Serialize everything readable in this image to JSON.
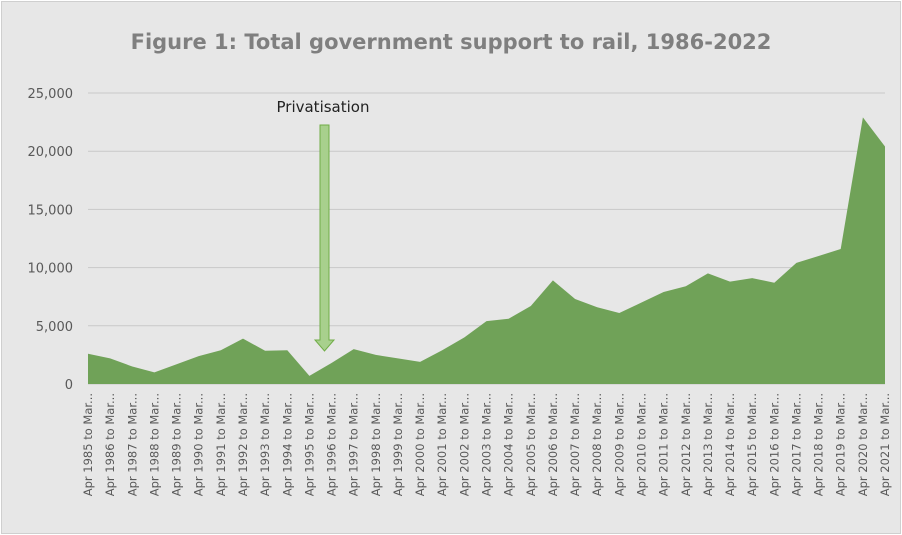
{
  "colors": {
    "area": "#70a258",
    "grid": "#c9c9c9",
    "arrow_fill": "#a8d08d",
    "arrow_stroke": "#70ad47",
    "title": "#7f7f7f"
  },
  "chart_data": {
    "type": "area",
    "title": "Figure 1: Total government support to rail, 1986-2022",
    "xlabel": "",
    "ylabel": "",
    "ylim": [
      0,
      25000
    ],
    "yticks": [
      "0",
      "5,000",
      "10,000",
      "15,000",
      "20,000",
      "25,000"
    ],
    "grid": true,
    "annotation": {
      "text": "Privatisation",
      "category": "Apr 1996 to Mar..."
    },
    "categories": [
      "Apr 1985 to Mar...",
      "Apr 1986 to Mar...",
      "Apr 1987 to Mar...",
      "Apr 1988 to Mar...",
      "Apr 1989 to Mar...",
      "Apr 1990 to Mar...",
      "Apr 1991 to Mar...",
      "Apr 1992 to Mar...",
      "Apr 1993 to Mar...",
      "Apr 1994 to Mar...",
      "Apr 1995 to Mar...",
      "Apr 1996 to Mar...",
      "Apr 1997 to Mar...",
      "Apr 1998 to Mar...",
      "Apr 1999 to Mar...",
      "Apr 2000 to Mar...",
      "Apr 2001 to Mar...",
      "Apr 2002 to Mar...",
      "Apr 2003 to Mar...",
      "Apr 2004 to Mar...",
      "Apr 2005 to Mar...",
      "Apr 2006 to Mar...",
      "Apr 2007 to Mar...",
      "Apr 2008 to Mar...",
      "Apr 2009 to Mar...",
      "Apr 2010 to Mar...",
      "Apr 2011 to Mar...",
      "Apr 2012 to Mar...",
      "Apr 2013 to Mar...",
      "Apr 2014 to Mar...",
      "Apr 2015 to Mar...",
      "Apr 2016 to Mar...",
      "Apr 2017 to Mar...",
      "Apr 2018 to Mar...",
      "Apr 2019 to Mar...",
      "Apr 2020 to Mar...",
      "Apr 2021 to Mar..."
    ],
    "values": [
      2600,
      2200,
      1500,
      1000,
      1700,
      2400,
      2900,
      3900,
      2850,
      2900,
      700,
      1800,
      3000,
      2500,
      2200,
      1900,
      2900,
      4000,
      5400,
      5600,
      6700,
      8900,
      7300,
      6600,
      6100,
      7000,
      7900,
      8400,
      9500,
      8800,
      9100,
      8700,
      10400,
      11000,
      11600,
      22900,
      20400
    ]
  }
}
